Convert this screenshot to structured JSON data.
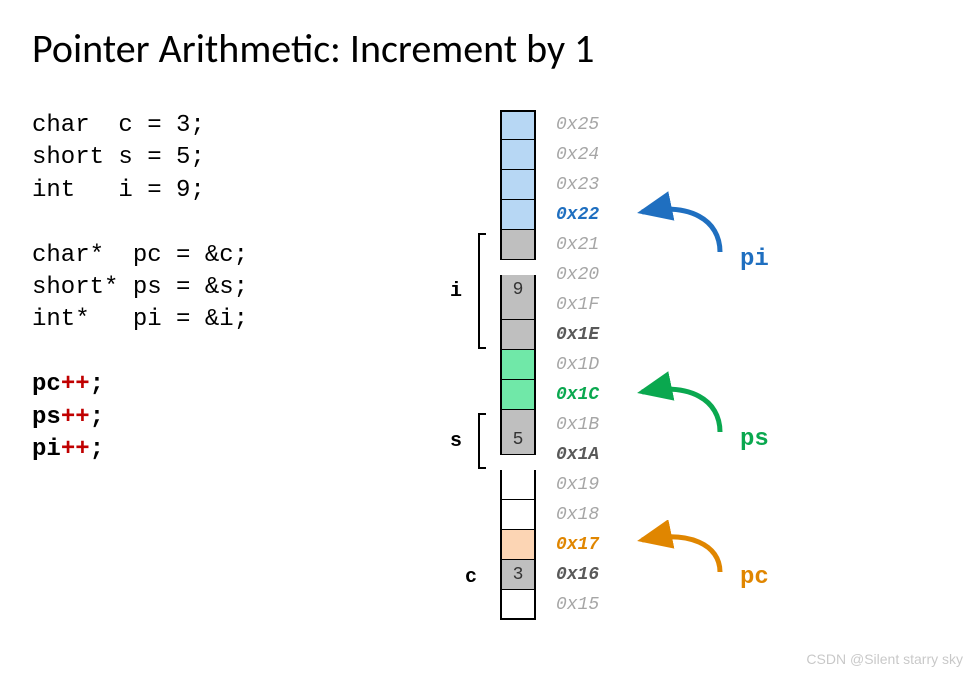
{
  "title": "Pointer Arithmetic: Increment by 1",
  "code": {
    "l1": "char  c = 3;",
    "l2": "short s = 5;",
    "l3": "int   i = 9;",
    "l4": "char*  pc = &c;",
    "l5": "short* ps = &s;",
    "l6": "int*   pi = &i;",
    "i1v": "pc",
    "i1op": "++",
    "i1s": ";",
    "i2v": "ps",
    "i2op": "++",
    "i2s": ";",
    "i3v": "pi",
    "i3op": "++",
    "i3s": ";"
  },
  "cells": [
    {
      "addr": "0x25",
      "val": "",
      "fill": "#b7d7f4",
      "addrColor": "#a6a6a6",
      "bold": false,
      "top": true
    },
    {
      "addr": "0x24",
      "val": "",
      "fill": "#b7d7f4",
      "addrColor": "#a6a6a6",
      "bold": false
    },
    {
      "addr": "0x23",
      "val": "",
      "fill": "#b7d7f4",
      "addrColor": "#a6a6a6",
      "bold": false
    },
    {
      "addr": "0x22",
      "val": "",
      "fill": "#b7d7f4",
      "addrColor": "#1f6fc0",
      "bold": true
    },
    {
      "addr": "0x21",
      "val": "",
      "fill": "#bfbfbf",
      "addrColor": "#a6a6a6",
      "bold": false
    },
    {
      "addr": "0x20",
      "val": "9",
      "fill": "#bfbfbf",
      "addrColor": "#a6a6a6",
      "bold": false
    },
    {
      "addr": "0x1F",
      "val": "",
      "fill": "#bfbfbf",
      "addrColor": "#a6a6a6",
      "bold": false
    },
    {
      "addr": "0x1E",
      "val": "",
      "fill": "#bfbfbf",
      "addrColor": "#595959",
      "bold": true
    },
    {
      "addr": "0x1D",
      "val": "",
      "fill": "#70e8a8",
      "addrColor": "#a6a6a6",
      "bold": false
    },
    {
      "addr": "0x1C",
      "val": "",
      "fill": "#70e8a8",
      "addrColor": "#0aa84f",
      "bold": true
    },
    {
      "addr": "0x1B",
      "val": "",
      "fill": "#bfbfbf",
      "addrColor": "#a6a6a6",
      "bold": false
    },
    {
      "addr": "0x1A",
      "val": "5",
      "fill": "#bfbfbf",
      "addrColor": "#595959",
      "bold": true
    },
    {
      "addr": "0x19",
      "val": "",
      "fill": "#ffffff",
      "addrColor": "#a6a6a6",
      "bold": false
    },
    {
      "addr": "0x18",
      "val": "",
      "fill": "#ffffff",
      "addrColor": "#a6a6a6",
      "bold": false
    },
    {
      "addr": "0x17",
      "val": "",
      "fill": "#fcd5b4",
      "addrColor": "#e08600",
      "bold": true
    },
    {
      "addr": "0x16",
      "val": "3",
      "fill": "#bfbfbf",
      "addrColor": "#595959",
      "bold": true
    },
    {
      "addr": "0x15",
      "val": "",
      "fill": "#ffffff",
      "addrColor": "#a6a6a6",
      "bold": false,
      "bot": true
    }
  ],
  "vars": {
    "i": "i",
    "s": "s",
    "c": "c"
  },
  "ptrs": {
    "pi": {
      "label": "pi",
      "color": "#1f6fc0"
    },
    "ps": {
      "label": "ps",
      "color": "#0aa84f"
    },
    "pc": {
      "label": "pc",
      "color": "#e08600"
    }
  },
  "valueCenter": {
    "i9row": 5,
    "s5row": 11
  },
  "watermark": "CSDN @Silent starry sky"
}
